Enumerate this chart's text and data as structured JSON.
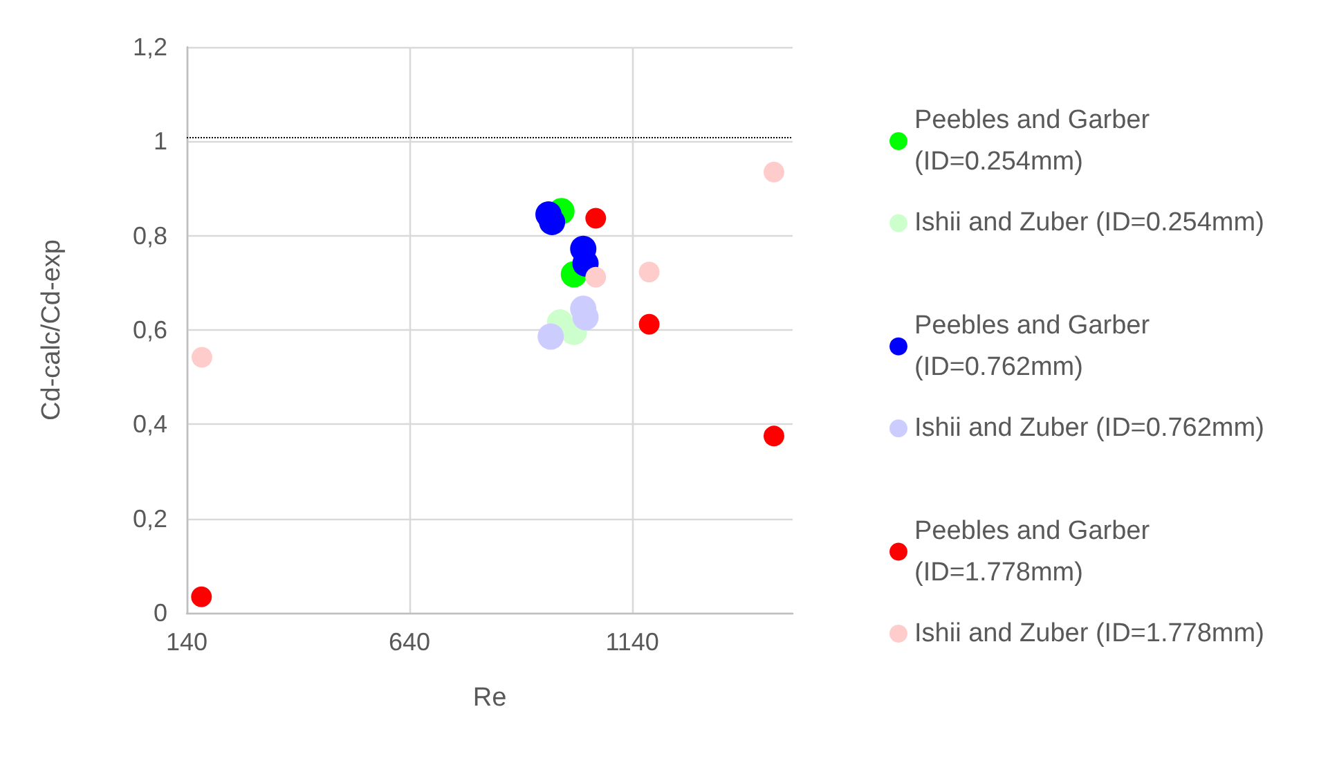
{
  "chart_data": {
    "type": "scatter",
    "xlabel": "Re",
    "ylabel": "Cd-calc/Cd-exp",
    "xlim": [
      140,
      1500
    ],
    "xticks": [
      140,
      640,
      1140
    ],
    "ylim": [
      0,
      1.2
    ],
    "yticks": [
      0,
      {
        "value": 0.2,
        "label": "0,2"
      },
      {
        "value": 0.4,
        "label": "0,4"
      },
      {
        "value": 0.6,
        "label": "0,6"
      },
      {
        "value": 0.8,
        "label": "0,8"
      },
      1,
      {
        "value": 1.2,
        "label": "1,2"
      }
    ],
    "grid": true,
    "legend": "right",
    "marker": "circle",
    "ref_lines": [
      {
        "axis": "y",
        "value": 1.01,
        "color": "#000000",
        "line_style": "dotted"
      }
    ],
    "series": [
      {
        "name": "Peebles and Garber (ID=0.254mm)",
        "color": "#00ff00",
        "x": [
          981,
          1009
        ],
        "values": [
          0.852,
          0.718
        ]
      },
      {
        "name": "Ishii and Zuber (ID=0.254mm)",
        "color": "#ccffcc",
        "x": [
          978,
          1009
        ],
        "values": [
          0.616,
          0.596
        ]
      },
      {
        "name": "Peebles and Garber (ID=0.762mm)",
        "color": "#0000ff",
        "x": [
          952,
          960,
          1030,
          1035
        ],
        "values": [
          0.845,
          0.829,
          0.772,
          0.741
        ]
      },
      {
        "name": "Ishii and Zuber (ID=0.762mm)",
        "color": "#ccccff",
        "x": [
          957,
          1030,
          1035
        ],
        "values": [
          0.586,
          0.645,
          0.627
        ]
      },
      {
        "name": "Peebles and Garber (ID=1.778mm)",
        "color": "#ff0000",
        "x": [
          173,
          1058,
          1178,
          1458
        ],
        "values": [
          0.034,
          0.837,
          0.612,
          0.375
        ]
      },
      {
        "name": "Ishii and Zuber (ID=1.778mm)",
        "color": "#ffcccc",
        "x": [
          174,
          1058,
          1178,
          1458
        ],
        "values": [
          0.542,
          0.712,
          0.723,
          0.935
        ]
      }
    ]
  }
}
